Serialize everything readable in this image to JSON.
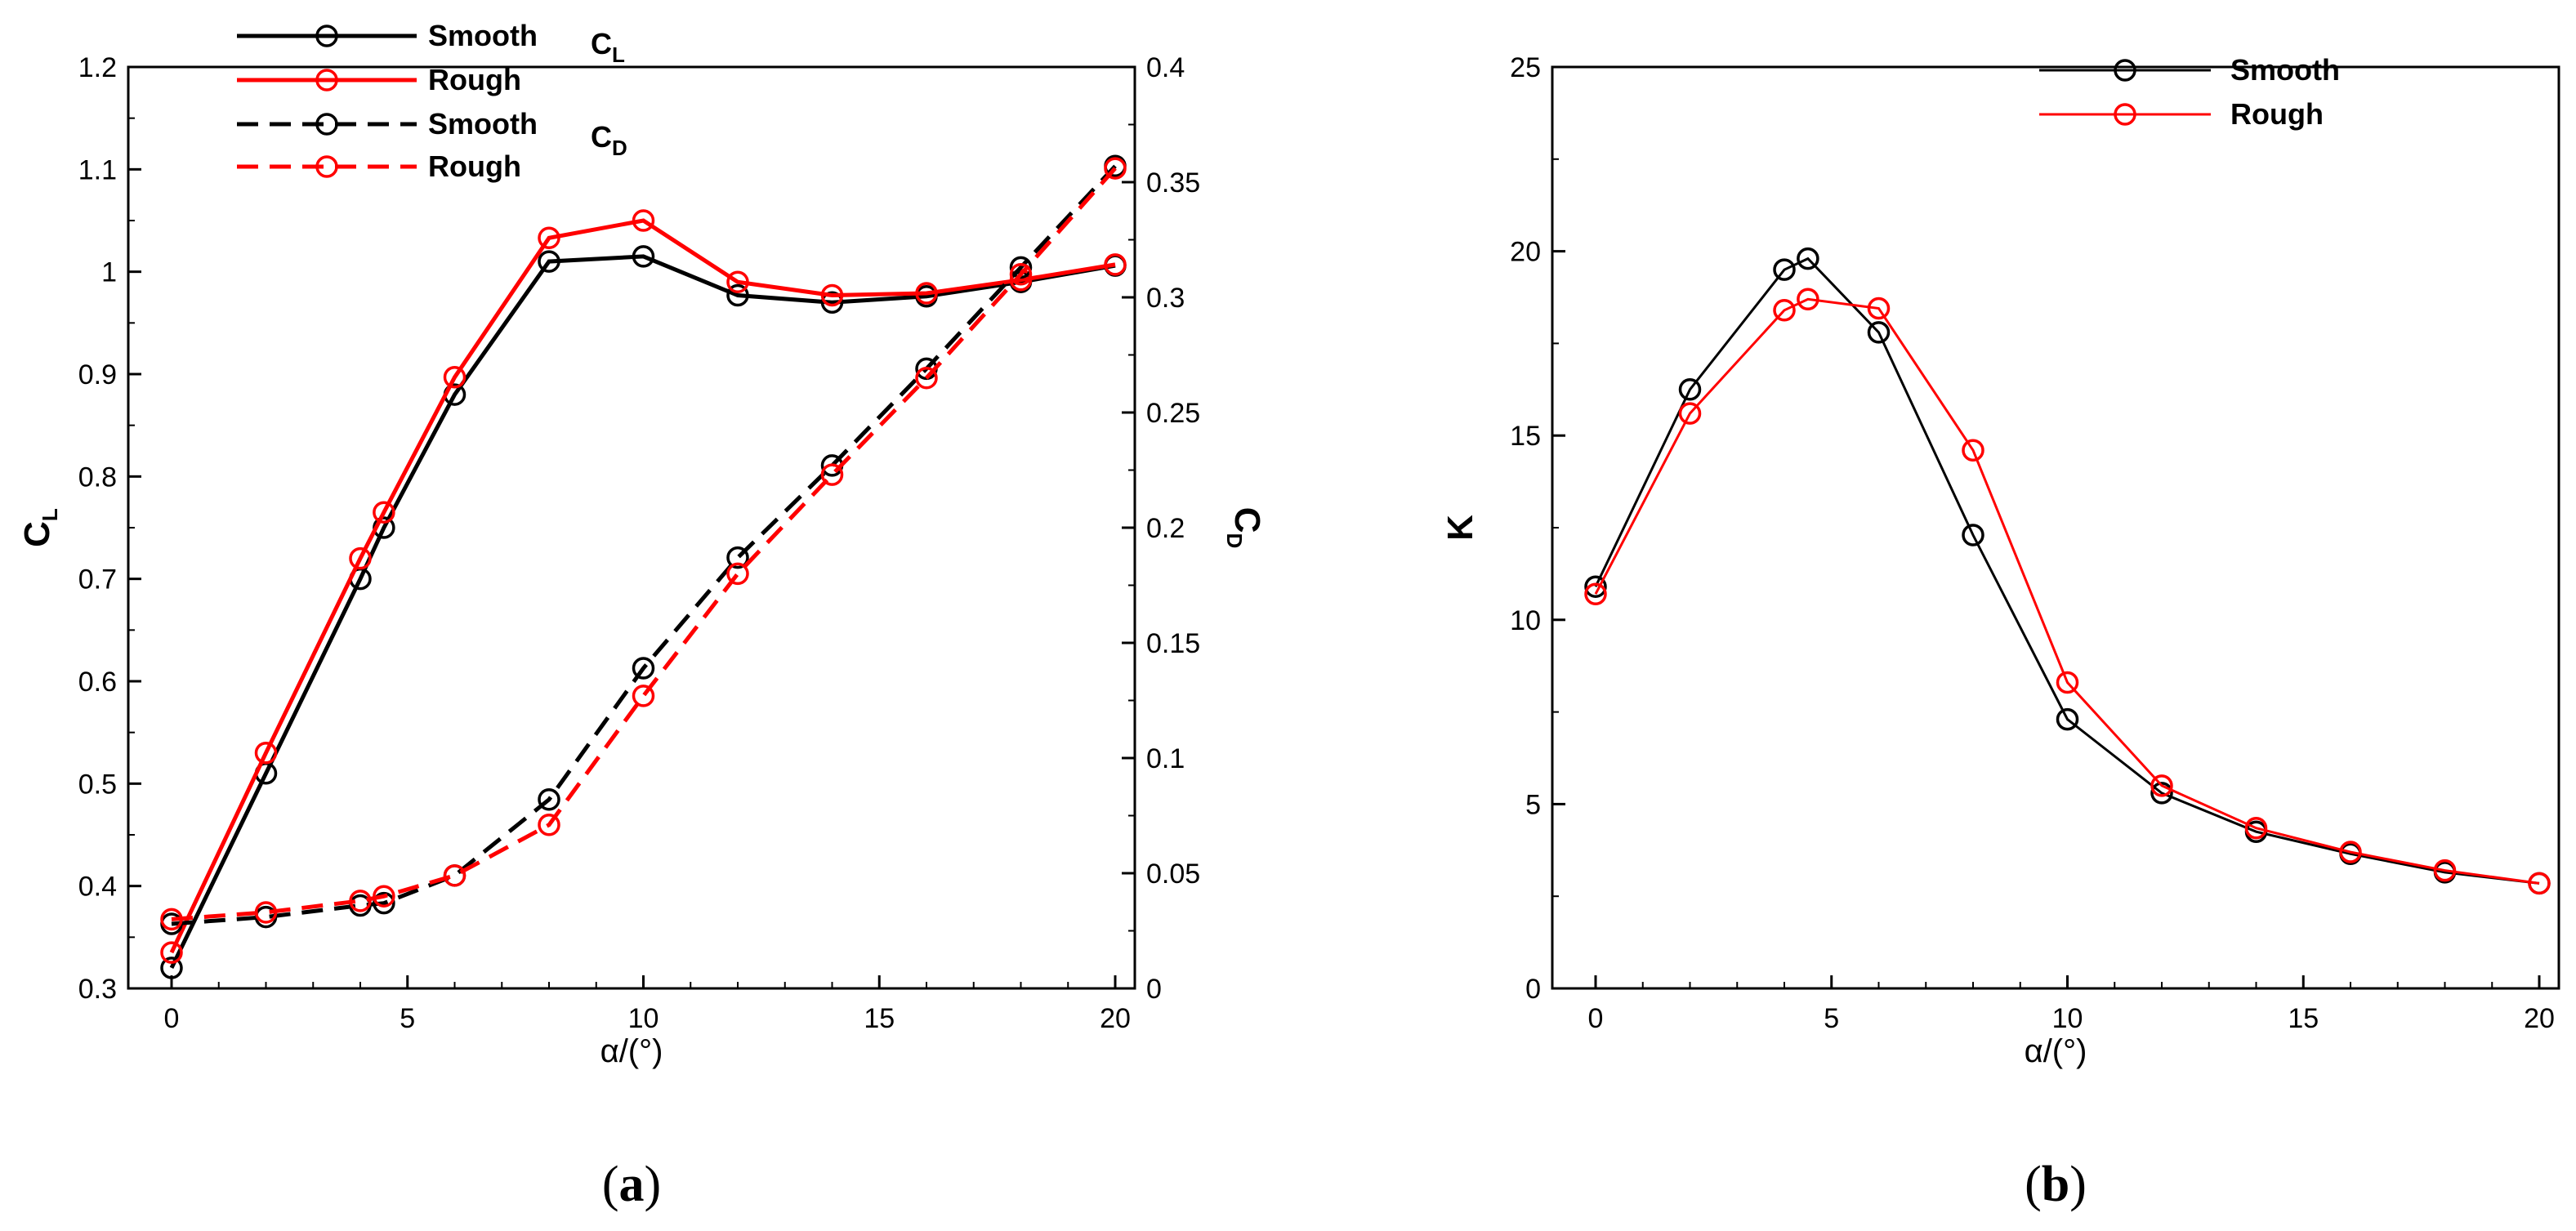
{
  "chart_data": [
    {
      "type": "line",
      "panel_label": "a",
      "xlabel": "α/(°)",
      "ylabel_left": {
        "main": "C",
        "sub": "L"
      },
      "ylabel_right": {
        "main": "C",
        "sub": "D"
      },
      "xlim": [
        0,
        20
      ],
      "ylim_left": [
        0.3,
        1.2
      ],
      "ylim_right": [
        0,
        0.4
      ],
      "x_ticks": [
        "0",
        "5",
        "10",
        "15",
        "20"
      ],
      "y_ticks_left": [
        "0.3",
        "0.4",
        "0.5",
        "0.6",
        "0.7",
        "0.8",
        "0.9",
        "1",
        "1.1",
        "1.2"
      ],
      "y_ticks_right": [
        "0",
        "0.05",
        "0.1",
        "0.15",
        "0.2",
        "0.25",
        "0.3",
        "0.35",
        "0.4"
      ],
      "legend_placement": "top-left",
      "legend_groups": [
        {
          "main": "C",
          "sub": "L"
        },
        {
          "main": "C",
          "sub": "D"
        }
      ],
      "series": [
        {
          "name": "Smooth",
          "group": "CL",
          "axis": "left",
          "color": "#000000",
          "dash": "solid",
          "x": [
            0,
            2,
            4,
            4.5,
            6,
            8,
            10,
            12,
            14,
            16,
            18,
            20
          ],
          "y": [
            0.32,
            0.51,
            0.7,
            0.75,
            0.88,
            1.01,
            1.015,
            0.977,
            0.97,
            0.976,
            0.99,
            1.006
          ]
        },
        {
          "name": "Rough",
          "group": "CL",
          "axis": "left",
          "color": "#ff0000",
          "dash": "solid",
          "x": [
            0,
            2,
            4,
            4.5,
            6,
            8,
            10,
            12,
            14,
            16,
            18,
            20
          ],
          "y": [
            0.335,
            0.53,
            0.72,
            0.765,
            0.897,
            1.033,
            1.05,
            0.99,
            0.977,
            0.979,
            0.992,
            1.007
          ]
        },
        {
          "name": "Smooth",
          "group": "CD",
          "axis": "right",
          "color": "#000000",
          "dash": "dashed",
          "x": [
            0,
            2,
            4,
            4.5,
            6,
            8,
            10,
            12,
            14,
            16,
            18,
            20
          ],
          "y": [
            0.028,
            0.031,
            0.036,
            0.037,
            0.049,
            0.082,
            0.139,
            0.187,
            0.227,
            0.269,
            0.313,
            0.357
          ]
        },
        {
          "name": "Rough",
          "group": "CD",
          "axis": "right",
          "color": "#ff0000",
          "dash": "dashed",
          "x": [
            0,
            2,
            4,
            4.5,
            6,
            8,
            10,
            12,
            14,
            16,
            18,
            20
          ],
          "y": [
            0.03,
            0.033,
            0.038,
            0.04,
            0.049,
            0.071,
            0.127,
            0.18,
            0.223,
            0.265,
            0.31,
            0.356
          ]
        }
      ]
    },
    {
      "type": "line",
      "panel_label": "b",
      "xlabel": "α/(°)",
      "ylabel": "K",
      "xlim": [
        0,
        20
      ],
      "ylim": [
        0,
        25
      ],
      "x_ticks": [
        "0",
        "5",
        "10",
        "15",
        "20"
      ],
      "y_ticks": [
        "0",
        "5",
        "10",
        "15",
        "20",
        "25"
      ],
      "legend_placement": "top-right",
      "series": [
        {
          "name": "Smooth",
          "color": "#000000",
          "dash": "solid",
          "x": [
            0,
            2,
            4,
            4.5,
            6,
            8,
            10,
            12,
            14,
            16,
            18,
            20
          ],
          "y": [
            10.9,
            16.25,
            19.5,
            19.8,
            17.8,
            12.3,
            7.3,
            5.3,
            4.25,
            3.65,
            3.15,
            2.85
          ]
        },
        {
          "name": "Rough",
          "color": "#ff0000",
          "dash": "solid",
          "x": [
            0,
            2,
            4,
            4.5,
            6,
            8,
            10,
            12,
            14,
            16,
            18,
            20
          ],
          "y": [
            10.7,
            15.6,
            18.4,
            18.7,
            18.45,
            14.6,
            8.3,
            5.5,
            4.35,
            3.7,
            3.2,
            2.85
          ]
        }
      ]
    }
  ]
}
